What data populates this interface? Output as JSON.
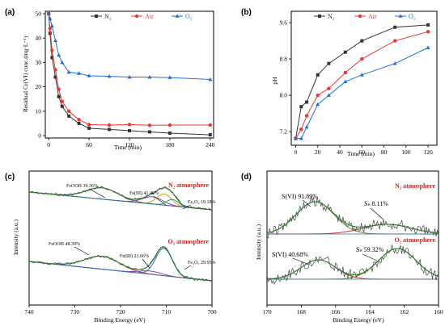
{
  "colors": {
    "n2": "#333333",
    "air": "#e53935",
    "o2": "#1e6fd9",
    "atm": "#c62828"
  },
  "chart_data": [
    {
      "panel": "(a)",
      "type": "line",
      "xlabel": "Time (min)",
      "ylabel": "Residual Cr(VI) conc.(mg·L⁻¹)",
      "xlim": [
        -5,
        245
      ],
      "ylim": [
        -1,
        51
      ],
      "xticks": [
        "0",
        "60",
        "120",
        "180",
        "240"
      ],
      "yticks": [
        "0",
        "10",
        "20",
        "30",
        "40",
        "50"
      ],
      "legend_position": "top-right",
      "series": [
        {
          "name": "N₂",
          "color": "#333333",
          "marker": "square",
          "x": [
            0,
            2,
            5,
            10,
            15,
            20,
            30,
            45,
            60,
            90,
            120,
            150,
            180,
            240
          ],
          "y": [
            50,
            42,
            32,
            24,
            16,
            12,
            8,
            5,
            3,
            2.5,
            2,
            1.5,
            1,
            0.3
          ]
        },
        {
          "name": "Air",
          "color": "#e53935",
          "marker": "circle",
          "x": [
            0,
            2,
            5,
            10,
            15,
            20,
            30,
            45,
            60,
            90,
            120,
            150,
            180,
            240
          ],
          "y": [
            50,
            44,
            35,
            27,
            19,
            14,
            10,
            6.5,
            4.5,
            4.3,
            4.5,
            4.2,
            4.3,
            4.3
          ]
        },
        {
          "name": "O₂",
          "color": "#1e6fd9",
          "marker": "triangle",
          "x": [
            0,
            2,
            5,
            10,
            15,
            20,
            30,
            45,
            60,
            90,
            120,
            150,
            180,
            240
          ],
          "y": [
            50,
            48,
            45,
            39,
            33,
            30,
            26,
            25.5,
            24.5,
            24.3,
            24,
            24,
            23.8,
            23
          ]
        }
      ]
    },
    {
      "panel": "(b)",
      "type": "line",
      "xlabel": "Time (min)",
      "ylabel": "pH",
      "xlim": [
        -4,
        128
      ],
      "ylim": [
        6.9,
        9.85
      ],
      "xticks": [
        "0",
        "20",
        "40",
        "60",
        "80",
        "100",
        "120"
      ],
      "yticks": [
        "7.2",
        "8.0",
        "8.8",
        "9.6"
      ],
      "legend_position": "top",
      "series": [
        {
          "name": "N₂",
          "color": "#333333",
          "marker": "square",
          "x": [
            0,
            5,
            10,
            20,
            30,
            45,
            60,
            90,
            120
          ],
          "y": [
            7.05,
            7.75,
            7.85,
            8.45,
            8.7,
            8.95,
            9.2,
            9.5,
            9.55
          ]
        },
        {
          "name": "Air",
          "color": "#e53935",
          "marker": "circle",
          "x": [
            0,
            5,
            10,
            20,
            30,
            45,
            60,
            90,
            120
          ],
          "y": [
            7.05,
            7.25,
            7.55,
            8.0,
            8.15,
            8.5,
            8.8,
            9.2,
            9.4
          ]
        },
        {
          "name": "O₂",
          "color": "#1e6fd9",
          "marker": "triangle",
          "x": [
            0,
            5,
            10,
            20,
            30,
            45,
            60,
            90,
            120
          ],
          "y": [
            7.05,
            7.05,
            7.3,
            7.8,
            8.0,
            8.3,
            8.45,
            8.7,
            9.05
          ]
        }
      ]
    },
    {
      "panel": "(c)",
      "type": "line",
      "xlabel": "Binding Energy (eV)",
      "ylabel": "Intensity (a.u.)",
      "xticks": [
        "740",
        "730",
        "720",
        "710",
        "700"
      ],
      "labels": {
        "atm_top": "N₂ atmosphere",
        "atm_bottom": "O₂ atmosphere"
      },
      "annotations_top": [
        "FeOOH 39.36%",
        "Fe(III) 41.46%",
        "Fe₂O₃ 19.18%"
      ],
      "annotations_bottom": [
        "FeOOH 48.39%",
        "Fe(III) 21.66%",
        "Fe₂O₃ 29.95%"
      ]
    },
    {
      "panel": "(d)",
      "type": "line",
      "xlabel": "Binding Energy (eV)",
      "ylabel": "Intensity (a.u.)",
      "xticks": [
        "170",
        "168",
        "166",
        "164",
        "162",
        "160"
      ],
      "labels": {
        "atm_top": "N₂ atmosphere",
        "atm_bottom": "O₂ atmosphere"
      },
      "annotations_top": [
        "S(VI) 91.89%",
        "Sₙ 8.11%"
      ],
      "annotations_bottom": [
        "S(VI) 40.68%",
        "Sₙ 59.32%"
      ]
    }
  ]
}
